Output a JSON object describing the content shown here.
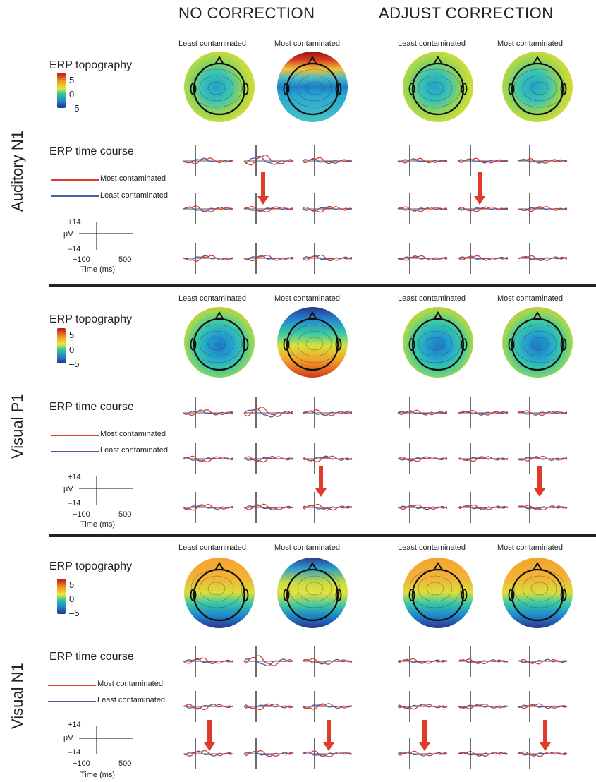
{
  "columns": {
    "left_title": "NO CORRECTION",
    "right_title": "ADJUST CORRECTION"
  },
  "topo_labels": {
    "least": "Least contaminated",
    "most": "Most contaminated"
  },
  "panel_headings": {
    "topography": "ERP topography",
    "time_course": "ERP time course"
  },
  "colorbar": {
    "ticks": [
      "5",
      "0",
      "–5"
    ]
  },
  "legend": {
    "most": "Most contaminated",
    "least": "Least contaminated",
    "most_color": "#e03a2a",
    "least_color": "#4a5ea8"
  },
  "scale": {
    "top": "+14",
    "unit": "µV",
    "bottom": "–14",
    "t_start": "−100",
    "t_end": "500",
    "t_label": "Time (ms)"
  },
  "rows": [
    {
      "label": "Auditory N1"
    },
    {
      "label": "Visual P1"
    },
    {
      "label": "Visual N1"
    }
  ],
  "colors": {
    "text": "#222222",
    "arrow": "#e03a2a",
    "divider": "#222222"
  }
}
